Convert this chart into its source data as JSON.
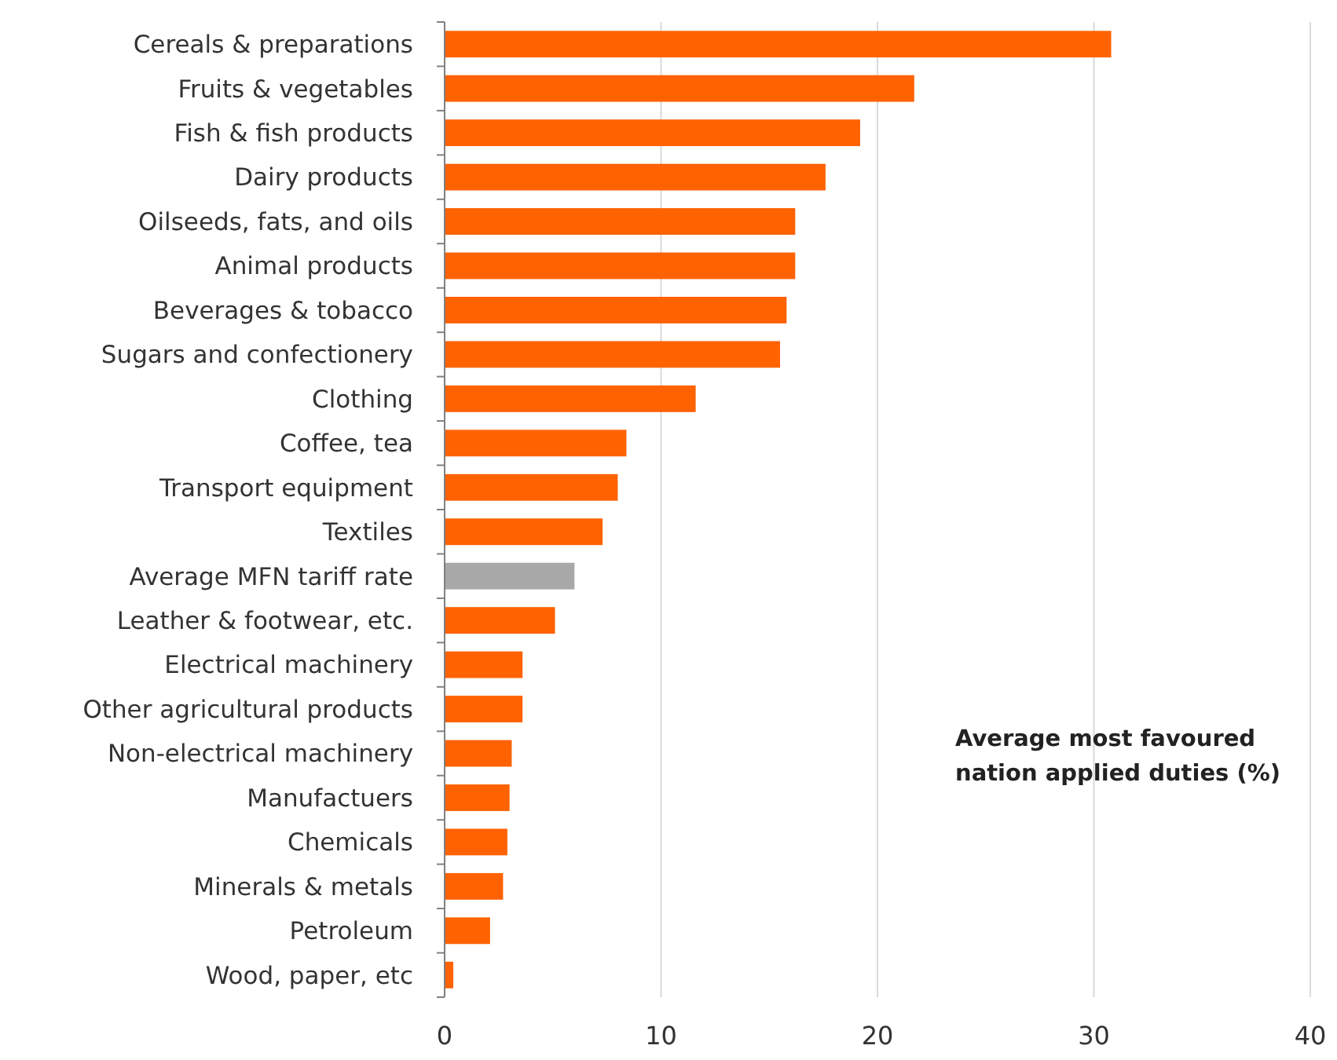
{
  "chart_data": {
    "type": "bar",
    "orientation": "horizontal",
    "categories": [
      "Cereals & preparations",
      "Fruits & vegetables",
      "Fish & fish products",
      "Dairy products",
      "Oilseeds, fats, and oils",
      "Animal products",
      "Beverages & tobacco",
      "Sugars and confectionery",
      "Clothing",
      "Coffee, tea",
      "Transport equipment",
      "Textiles",
      "Average MFN tariff rate",
      "Leather & footwear, etc.",
      "Electrical machinery",
      "Other agricultural products",
      "Non-electrical machinery",
      "Manufactuers",
      "Chemicals",
      "Minerals & metals ",
      "Petroleum",
      "Wood, paper, etc"
    ],
    "values": [
      30.8,
      21.7,
      19.2,
      17.6,
      16.2,
      16.2,
      15.8,
      15.5,
      11.6,
      8.4,
      8.0,
      7.3,
      6.0,
      5.1,
      3.6,
      3.6,
      3.1,
      3.0,
      2.9,
      2.7,
      2.1,
      0.4
    ],
    "colors": [
      "#ff6200",
      "#ff6200",
      "#ff6200",
      "#ff6200",
      "#ff6200",
      "#ff6200",
      "#ff6200",
      "#ff6200",
      "#ff6200",
      "#ff6200",
      "#ff6200",
      "#ff6200",
      "#a8a8a8",
      "#ff6200",
      "#ff6200",
      "#ff6200",
      "#ff6200",
      "#ff6200",
      "#ff6200",
      "#ff6200",
      "#ff6200",
      "#ff6200"
    ],
    "xlim": [
      0,
      40
    ],
    "xticks": [
      0,
      10,
      20,
      30,
      40
    ],
    "grid": "x",
    "annotations": [
      "Average most favoured nation applied duties (%)"
    ]
  }
}
